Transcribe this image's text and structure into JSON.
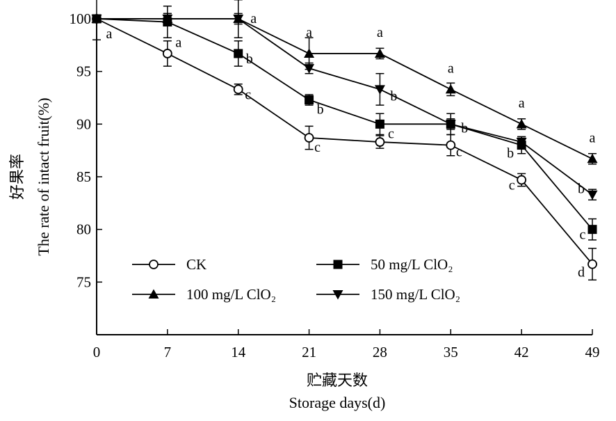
{
  "chart_data": {
    "type": "line",
    "ylabel_cn": "好果率",
    "ylabel": "The rate of intact fruit(%)",
    "xlabel_cn": "贮藏天数",
    "xlabel": "Storage days(d)",
    "x": [
      0,
      7,
      14,
      21,
      28,
      35,
      42,
      49
    ],
    "xlim": [
      0,
      49
    ],
    "ylim": [
      70,
      100
    ],
    "yticks": [
      75,
      80,
      85,
      90,
      95,
      100
    ],
    "grid": false,
    "legend_position": "bottom-left",
    "series": [
      {
        "name": "CK",
        "marker": "open-circle",
        "values": [
          100,
          96.7,
          93.3,
          88.7,
          88.3,
          88.0,
          84.7,
          76.7
        ],
        "errors": [
          2.0,
          1.2,
          0.5,
          1.1,
          0.6,
          1.0,
          0.6,
          1.5
        ],
        "letters": [
          "a",
          "",
          "c",
          "c",
          "",
          "c",
          "c",
          "d"
        ]
      },
      {
        "name": "50 mg/L ClO₂",
        "marker": "filled-square",
        "values": [
          100,
          99.7,
          96.7,
          92.3,
          90.0,
          90.0,
          88.0,
          80.0
        ],
        "errors": [
          0.0,
          1.5,
          1.2,
          0.5,
          1.0,
          1.0,
          0.8,
          1.0
        ],
        "letters": [
          "",
          "a",
          "b",
          "b",
          "c",
          "",
          "b",
          "c"
        ]
      },
      {
        "name": "100 mg/L ClO₂",
        "marker": "filled-triangle-up",
        "values": [
          100,
          100,
          100,
          96.7,
          96.7,
          93.3,
          90.0,
          86.7
        ],
        "errors": [
          0.0,
          0.5,
          1.8,
          1.5,
          0.5,
          0.6,
          0.5,
          0.5
        ],
        "letters": [
          "",
          "",
          "a",
          "a",
          "a",
          "a",
          "a",
          "a"
        ]
      },
      {
        "name": "150 mg/L ClO₂",
        "marker": "filled-triangle-down",
        "values": [
          100,
          100,
          100,
          95.3,
          93.3,
          90.0,
          88.3,
          83.3
        ],
        "errors": [
          0.0,
          0.5,
          0.5,
          0.5,
          1.5,
          0.5,
          0.5,
          0.5
        ],
        "letters": [
          "",
          "",
          "",
          "",
          "b",
          "b",
          "",
          "b"
        ]
      }
    ]
  }
}
